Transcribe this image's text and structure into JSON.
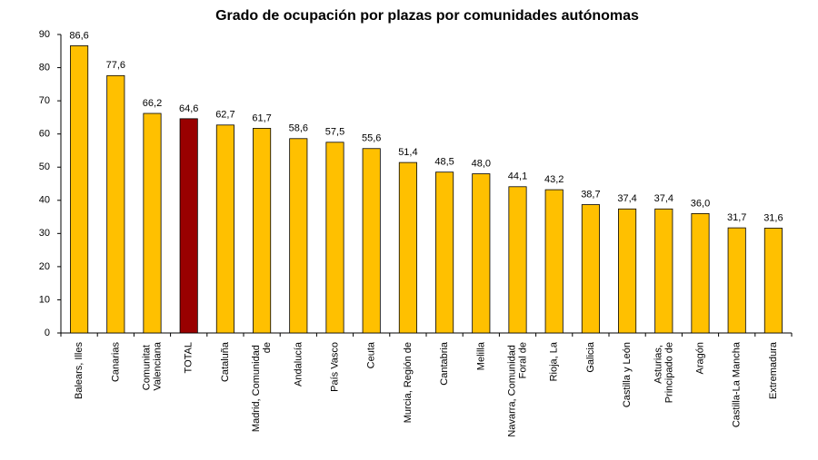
{
  "chart_data": {
    "type": "bar",
    "title": "Grado de ocupación por plazas por comunidades autónomas",
    "categories": [
      "Balears, Illes",
      "Canarias",
      "Comunitat Valenciana",
      "TOTAL",
      "Cataluña",
      "Madrid, Comunidad de",
      "Andalucía",
      "País Vasco",
      "Ceuta",
      "Murcia, Región de",
      "Cantabria",
      "Melilla",
      "Navarra, Comunidad Foral de",
      "Rioja, La",
      "Galicia",
      "Castilla y León",
      "Asturias, Principado de",
      "Aragón",
      "Castilla-La Mancha",
      "Extremadura"
    ],
    "values": [
      86.6,
      77.6,
      66.2,
      64.6,
      62.7,
      61.7,
      58.6,
      57.5,
      55.6,
      51.4,
      48.5,
      48.0,
      44.1,
      43.2,
      38.7,
      37.4,
      37.4,
      36.0,
      31.7,
      31.6
    ],
    "value_labels": [
      "86,6",
      "77,6",
      "66,2",
      "64,6",
      "62,7",
      "61,7",
      "58,6",
      "57,5",
      "55,6",
      "51,4",
      "48,5",
      "48,0",
      "44,1",
      "43,2",
      "38,7",
      "37,4",
      "37,4",
      "36,0",
      "31,7",
      "31,6"
    ],
    "colors": [
      "#ffc000",
      "#ffc000",
      "#ffc000",
      "#990000",
      "#ffc000",
      "#ffc000",
      "#ffc000",
      "#ffc000",
      "#ffc000",
      "#ffc000",
      "#ffc000",
      "#ffc000",
      "#ffc000",
      "#ffc000",
      "#ffc000",
      "#ffc000",
      "#ffc000",
      "#ffc000",
      "#ffc000",
      "#ffc000"
    ],
    "ylim": [
      0,
      90
    ],
    "yticks": [
      0,
      10,
      20,
      30,
      40,
      50,
      60,
      70,
      80,
      90
    ],
    "grid": false
  }
}
